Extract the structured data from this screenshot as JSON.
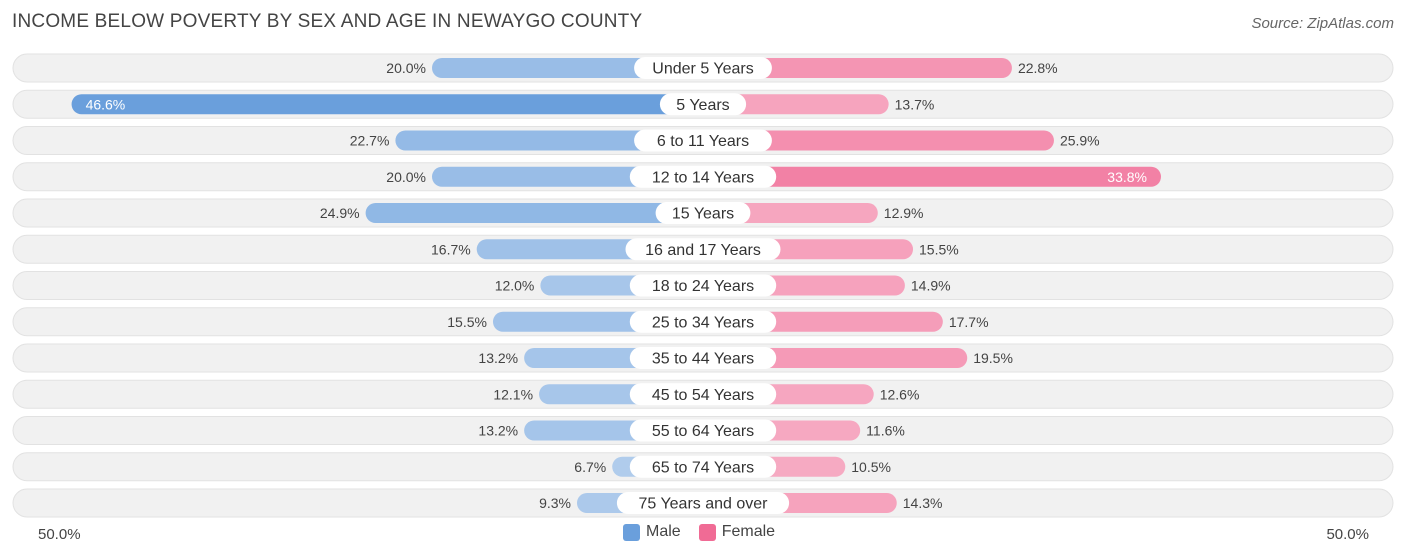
{
  "title": "INCOME BELOW POVERTY BY SEX AND AGE IN NEWAYGO COUNTY",
  "source": "Source: ZipAtlas.com",
  "axis": {
    "left_label": "50.0%",
    "right_label": "50.0%"
  },
  "legend": {
    "male_label": "Male",
    "female_label": "Female",
    "male_color": "#6a9fdc",
    "female_color": "#f06b95"
  },
  "chart_data": {
    "type": "bar",
    "orientation": "horizontal-diverging",
    "title": "INCOME BELOW POVERTY BY SEX AND AGE IN NEWAYGO COUNTY",
    "xlim": [
      -50,
      50
    ],
    "categories": [
      "Under 5 Years",
      "5 Years",
      "6 to 11 Years",
      "12 to 14 Years",
      "15 Years",
      "16 and 17 Years",
      "18 to 24 Years",
      "25 to 34 Years",
      "35 to 44 Years",
      "45 to 54 Years",
      "55 to 64 Years",
      "65 to 74 Years",
      "75 Years and over"
    ],
    "series": [
      {
        "name": "Male",
        "values": [
          20.0,
          46.6,
          22.7,
          20.0,
          24.9,
          16.7,
          12.0,
          15.5,
          13.2,
          12.1,
          13.2,
          6.7,
          9.3
        ],
        "labels": [
          "20.0%",
          "46.6%",
          "22.7%",
          "20.0%",
          "24.9%",
          "16.7%",
          "12.0%",
          "15.5%",
          "13.2%",
          "12.1%",
          "13.2%",
          "6.7%",
          "9.3%"
        ]
      },
      {
        "name": "Female",
        "values": [
          22.8,
          13.7,
          25.9,
          33.8,
          12.9,
          15.5,
          14.9,
          17.7,
          19.5,
          12.6,
          11.6,
          10.5,
          14.3
        ],
        "labels": [
          "22.8%",
          "13.7%",
          "25.9%",
          "33.8%",
          "12.9%",
          "15.5%",
          "14.9%",
          "17.7%",
          "19.5%",
          "12.6%",
          "11.6%",
          "10.5%",
          "14.3%"
        ]
      }
    ],
    "legend_position": "bottom-center"
  }
}
